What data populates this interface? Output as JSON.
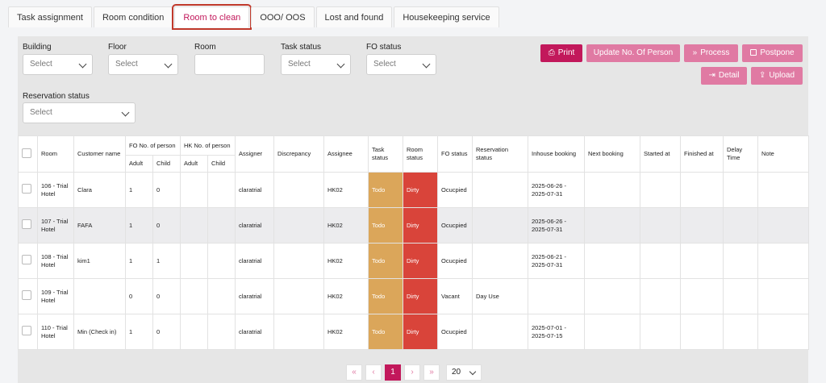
{
  "tabs": [
    {
      "label": "Task assignment"
    },
    {
      "label": "Room condition"
    },
    {
      "label": "Room to clean"
    },
    {
      "label": "OOO/ OOS"
    },
    {
      "label": "Lost and found"
    },
    {
      "label": "Housekeeping service"
    }
  ],
  "filters": {
    "building": {
      "label": "Building",
      "value": "Select"
    },
    "floor": {
      "label": "Floor",
      "value": "Select"
    },
    "room": {
      "label": "Room",
      "value": ""
    },
    "task_status": {
      "label": "Task status",
      "value": "Select"
    },
    "fo_status": {
      "label": "FO status",
      "value": "Select"
    },
    "reservation_status": {
      "label": "Reservation status",
      "value": "Select"
    }
  },
  "actions": {
    "print": "Print",
    "update_persons": "Update No. Of Person",
    "process": "Process",
    "postpone": "Postpone",
    "detail": "Detail",
    "upload": "Upload"
  },
  "table": {
    "headers": {
      "room": "Room",
      "customer_name": "Customer name",
      "fo_persons": "FO No. of person",
      "hk_persons": "HK No. of person",
      "adult": "Adult",
      "child": "Child",
      "assigner": "Assigner",
      "discrepancy": "Discrepancy",
      "assignee": "Assignee",
      "task_status": "Task status",
      "room_status": "Room status",
      "fo_status": "FO status",
      "reservation_status": "Reservation status",
      "inhouse_booking": "Inhouse booking",
      "next_booking": "Next booking",
      "started_at": "Started at",
      "finished_at": "Finished at",
      "delay_time": "Delay Time",
      "note": "Note"
    },
    "rows": [
      {
        "room": "106 - Trial Hotel",
        "customer": "Clara",
        "fo_adult": "1",
        "fo_child": "0",
        "hk_adult": "",
        "hk_child": "",
        "assigner": "claratrial",
        "discrepancy": "",
        "assignee": "HK02",
        "task_status": "Todo",
        "room_status": "Dirty",
        "fo_status": "Ocucpied",
        "reservation_status": "",
        "inhouse": "2025-06-26 - 2025-07-31",
        "next_booking": "",
        "started_at": "",
        "finished_at": "",
        "delay": "",
        "note": ""
      },
      {
        "room": "107 - Trial Hotel",
        "customer": "FAFA",
        "fo_adult": "1",
        "fo_child": "0",
        "hk_adult": "",
        "hk_child": "",
        "assigner": "claratrial",
        "discrepancy": "",
        "assignee": "HK02",
        "task_status": "Todo",
        "room_status": "Dirty",
        "fo_status": "Ocucpied",
        "reservation_status": "",
        "inhouse": "2025-06-26 - 2025-07-31",
        "next_booking": "",
        "started_at": "",
        "finished_at": "",
        "delay": "",
        "note": ""
      },
      {
        "room": "108 - Trial Hotel",
        "customer": "kim1",
        "fo_adult": "1",
        "fo_child": "1",
        "hk_adult": "",
        "hk_child": "",
        "assigner": "claratrial",
        "discrepancy": "",
        "assignee": "HK02",
        "task_status": "Todo",
        "room_status": "Dirty",
        "fo_status": "Ocucpied",
        "reservation_status": "",
        "inhouse": "2025-06-21 - 2025-07-31",
        "next_booking": "",
        "started_at": "",
        "finished_at": "",
        "delay": "",
        "note": ""
      },
      {
        "room": "109 - Trial Hotel",
        "customer": "",
        "fo_adult": "0",
        "fo_child": "0",
        "hk_adult": "",
        "hk_child": "",
        "assigner": "claratrial",
        "discrepancy": "",
        "assignee": "HK02",
        "task_status": "Todo",
        "room_status": "Dirty",
        "fo_status": "Vacant",
        "reservation_status": "Day Use",
        "inhouse": "",
        "next_booking": "",
        "started_at": "",
        "finished_at": "",
        "delay": "",
        "note": ""
      },
      {
        "room": "110 - Trial Hotel",
        "customer": "Min (Check in)",
        "fo_adult": "1",
        "fo_child": "0",
        "hk_adult": "",
        "hk_child": "",
        "assigner": "claratrial",
        "discrepancy": "",
        "assignee": "HK02",
        "task_status": "Todo",
        "room_status": "Dirty",
        "fo_status": "Ocucpied",
        "reservation_status": "",
        "inhouse": "2025-07-01 - 2025-07-15",
        "next_booking": "",
        "started_at": "",
        "finished_at": "",
        "delay": "",
        "note": ""
      }
    ]
  },
  "pagination": {
    "first": "«",
    "prev": "‹",
    "current": "1",
    "next": "›",
    "last": "»",
    "page_size": "20"
  },
  "colors": {
    "accent": "#c2185b",
    "accent_light": "#e07aa3",
    "todo": "#dba65a",
    "dirty": "#d9443a"
  }
}
